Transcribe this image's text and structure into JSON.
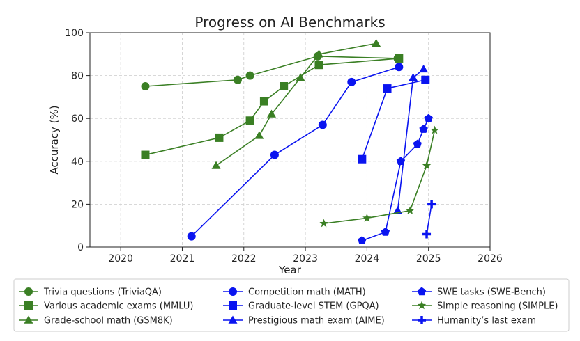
{
  "chart_data": {
    "type": "line",
    "title": "Progress on AI Benchmarks",
    "xlabel": "Year",
    "ylabel": "Accuracy (%)",
    "xlim": [
      2019.5,
      2026
    ],
    "ylim": [
      0,
      100
    ],
    "x_ticks": [
      "2020",
      "2021",
      "2022",
      "2023",
      "2024",
      "2025",
      "2026"
    ],
    "y_ticks": [
      "0",
      "20",
      "40",
      "60",
      "80",
      "100"
    ],
    "grid": true,
    "legend_position": "bottom",
    "colors": {
      "green": "#3a7f24",
      "blue": "#0a14f0"
    },
    "series": [
      {
        "name": "Trivia questions (TriviaQA)",
        "color": "green",
        "marker": "circle",
        "x": [
          2020.4,
          2021.9,
          2022.1,
          2023.2,
          2024.5
        ],
        "y": [
          75,
          78,
          80,
          89,
          88
        ]
      },
      {
        "name": "Various academic exams (MMLU)",
        "color": "green",
        "marker": "square",
        "x": [
          2020.4,
          2021.6,
          2022.1,
          2022.33,
          2022.65,
          2023.22,
          2024.52
        ],
        "y": [
          43,
          51,
          59,
          68,
          75,
          85,
          88
        ]
      },
      {
        "name": "Grade-school math (GSM8K)",
        "color": "green",
        "marker": "triangle",
        "x": [
          2021.55,
          2022.25,
          2022.45,
          2022.92,
          2023.22,
          2024.15
        ],
        "y": [
          38,
          52,
          62,
          79,
          90,
          95
        ]
      },
      {
        "name": "Competition math (MATH)",
        "color": "blue",
        "marker": "circle",
        "x": [
          2021.15,
          2022.5,
          2023.28,
          2023.75,
          2024.52
        ],
        "y": [
          5,
          43,
          57,
          77,
          84
        ]
      },
      {
        "name": "Graduate-level STEM (GPQA)",
        "color": "blue",
        "marker": "square",
        "x": [
          2023.92,
          2024.33,
          2024.95
        ],
        "y": [
          41,
          74,
          78
        ]
      },
      {
        "name": "Prestigious math exam (AIME)",
        "color": "blue",
        "marker": "triangle",
        "x": [
          2024.5,
          2024.75,
          2024.92
        ],
        "y": [
          17,
          79,
          83
        ]
      },
      {
        "name": "SWE tasks (SWE-Bench)",
        "color": "blue",
        "marker": "pentagon",
        "x": [
          2023.92,
          2024.3,
          2024.55,
          2024.82,
          2024.92,
          2025.0
        ],
        "y": [
          3,
          7,
          40,
          48,
          55,
          60
        ]
      },
      {
        "name": "Simple reasoning (SIMPLE)",
        "color": "green",
        "marker": "star",
        "x": [
          2023.3,
          2024.0,
          2024.7,
          2024.97,
          2025.1
        ],
        "y": [
          11,
          13.5,
          17,
          38,
          54.5
        ]
      },
      {
        "name": "Humanity’s last exam",
        "color": "blue",
        "marker": "plus",
        "x": [
          2024.97,
          2025.05
        ],
        "y": [
          6,
          20
        ]
      }
    ]
  }
}
